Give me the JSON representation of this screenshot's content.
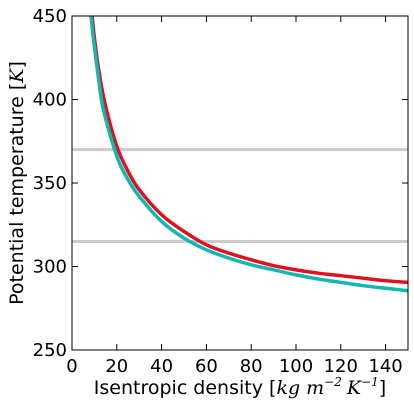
{
  "chart_data": {
    "type": "line",
    "xlabel": {
      "text": "Isentropic density [",
      "math": "kg m",
      "exp1": "−2",
      "math2": "K",
      "exp2": "−1",
      "close": "]"
    },
    "ylabel": {
      "text": "Potential temperature [",
      "math": "K",
      "close": "]"
    },
    "xlim": [
      0,
      150
    ],
    "ylim": [
      250,
      450
    ],
    "xticks": [
      0,
      20,
      40,
      60,
      80,
      100,
      120,
      140
    ],
    "yticks": [
      250,
      300,
      350,
      400,
      450
    ],
    "grid": false,
    "reference_lines": [
      {
        "axis": "y",
        "value": 370,
        "color": "#cccccc"
      },
      {
        "axis": "y",
        "value": 315,
        "color": "#cccccc"
      }
    ],
    "series": [
      {
        "color": "#e01020",
        "x": [
          9,
          10,
          12,
          15,
          20,
          25,
          30,
          40,
          50,
          60,
          70,
          80,
          90,
          100,
          110,
          120,
          130,
          140,
          150
        ],
        "y": [
          450,
          437,
          417,
          396,
          372,
          357,
          346,
          331,
          321,
          313,
          308,
          304,
          300.5,
          298,
          296,
          294.5,
          293,
          291.5,
          290.5
        ]
      },
      {
        "color": "#10b8b0",
        "x": [
          8.5,
          9.5,
          11.5,
          14,
          20,
          25,
          30,
          40,
          50,
          60,
          70,
          80,
          90,
          100,
          110,
          120,
          130,
          140,
          150
        ],
        "y": [
          450,
          437,
          416,
          394,
          366,
          352,
          342,
          327,
          317,
          310,
          305,
          301,
          298,
          295,
          292.5,
          290.5,
          288.5,
          287,
          285.5
        ]
      }
    ]
  }
}
